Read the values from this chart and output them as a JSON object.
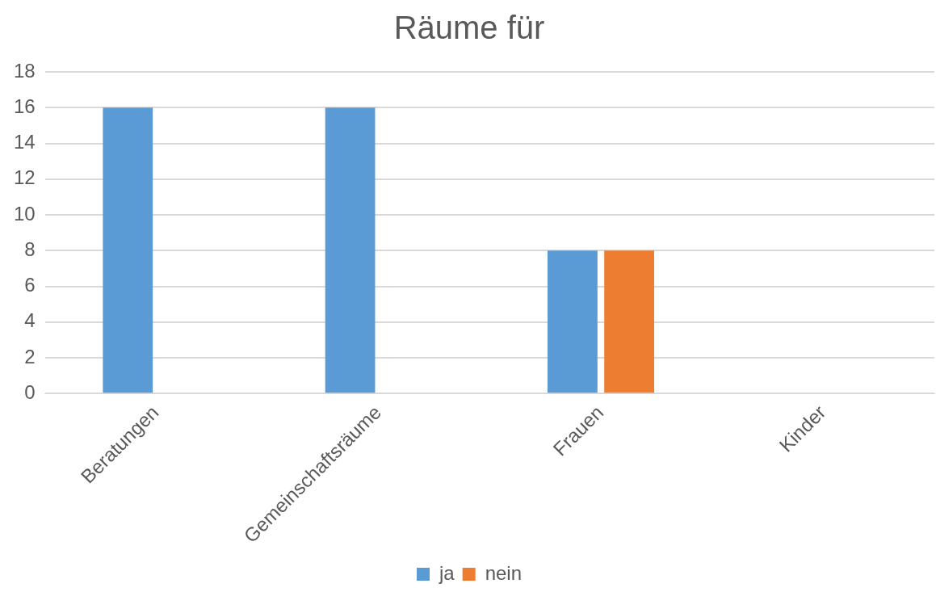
{
  "chart_data": {
    "type": "bar",
    "title": "Räume für",
    "categories": [
      "Beratungen",
      "Gemeinschaftsräume",
      "Frauen",
      "Kinder"
    ],
    "series": [
      {
        "name": "ja",
        "color": "#5b9bd5",
        "values": [
          16,
          16,
          8,
          0
        ]
      },
      {
        "name": "nein",
        "color": "#ed7d31",
        "values": [
          0,
          0,
          8,
          0
        ]
      }
    ],
    "ylim": [
      0,
      18
    ],
    "yticks": [
      0,
      2,
      4,
      6,
      8,
      10,
      12,
      14,
      16,
      18
    ],
    "grid": "y",
    "legend": "bottom"
  }
}
